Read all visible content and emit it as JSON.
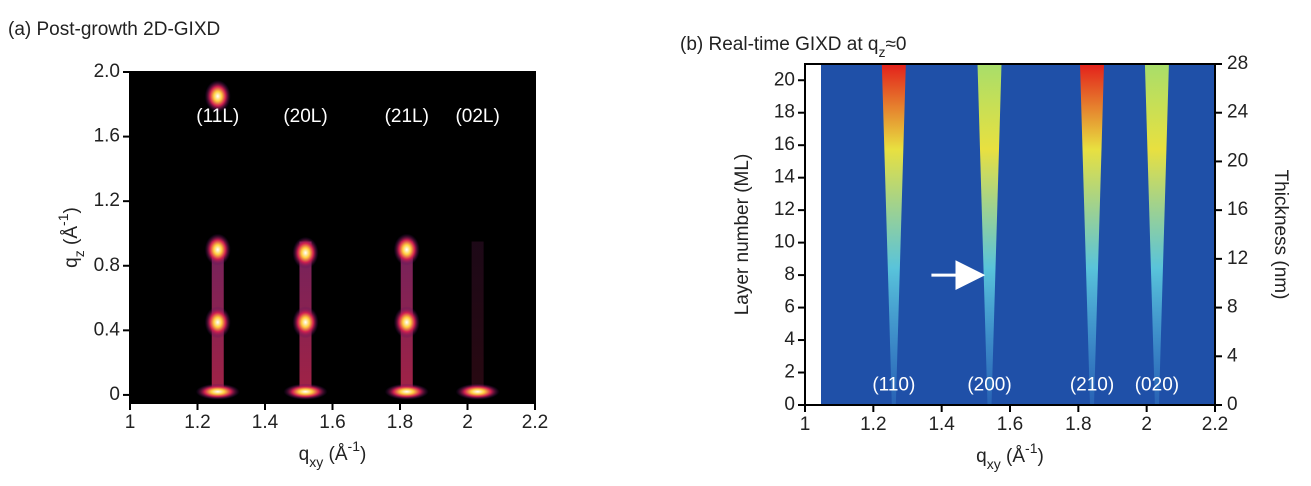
{
  "chart_data": [
    {
      "type": "heatmap",
      "title": "(a) Post-growth 2D-GIXD",
      "xlabel": [
        {
          "t": "q"
        },
        {
          "t": "xy",
          "sub": true
        },
        {
          "t": " (Å"
        },
        {
          "t": "-1",
          "sup": true
        },
        {
          "t": ")"
        }
      ],
      "ylabel": [
        {
          "t": "q"
        },
        {
          "t": "z",
          "sub": true
        },
        {
          "t": " (Å"
        },
        {
          "t": "-1",
          "sup": true
        },
        {
          "t": ")"
        }
      ],
      "xlim": [
        1,
        2.2
      ],
      "xticks": [
        1,
        1.2,
        1.4,
        1.6,
        1.8,
        2,
        2.2
      ],
      "ylim": [
        -0.05,
        2.0
      ],
      "yticks": [
        0,
        0.4,
        0.8,
        1.2,
        1.6,
        {
          "value": 2,
          "label": "2.0"
        }
      ],
      "background": "#000000",
      "peaks": [
        {
          "label": "(11L)",
          "x": 1.26,
          "spots": [
            0.02,
            0.45,
            0.9,
            1.85
          ]
        },
        {
          "label": "(20L)",
          "x": 1.52,
          "spots": [
            0.02,
            0.45,
            0.88
          ]
        },
        {
          "label": "(21L)",
          "x": 1.82,
          "spots": [
            0.02,
            0.45,
            0.9
          ]
        },
        {
          "label": "(02L)",
          "x": 2.03,
          "spots": [
            0.02
          ]
        }
      ],
      "peak_label_y": 1.72
    },
    {
      "type": "heatmap",
      "title": [
        {
          "t": "(b) Real-time GIXD at q"
        },
        {
          "t": "z",
          "sub": true
        },
        {
          "t": "≈0"
        }
      ],
      "xlabel": [
        {
          "t": "q"
        },
        {
          "t": "xy",
          "sub": true
        },
        {
          "t": " (Å"
        },
        {
          "t": "-1",
          "sup": true
        },
        {
          "t": ")"
        }
      ],
      "ylabel": "Layer number (ML)",
      "y2label": "Thickness (nm)",
      "xlim": [
        1,
        2.2
      ],
      "xticks": [
        1,
        1.2,
        1.4,
        1.6,
        1.8,
        2,
        2.2
      ],
      "ylim": [
        0,
        21
      ],
      "yticks": [
        0,
        2,
        4,
        6,
        8,
        10,
        12,
        14,
        16,
        18,
        20
      ],
      "y2lim": [
        0,
        28
      ],
      "y2ticks": [
        0,
        4,
        8,
        12,
        16,
        20,
        24,
        28
      ],
      "background": "#1f50a8",
      "peaks": [
        {
          "label": "(110)",
          "x": 1.26,
          "color": "#e3201b"
        },
        {
          "label": "(200)",
          "x": 1.54,
          "color": "#a8de6a"
        },
        {
          "label": "(210)",
          "x": 1.84,
          "color": "#e3201b"
        },
        {
          "label": "(020)",
          "x": 2.03,
          "color": "#a8de6a"
        }
      ],
      "peak_label_y": 1.2,
      "arrow": {
        "x": [
          1.37,
          1.51
        ],
        "y": 8
      }
    }
  ]
}
